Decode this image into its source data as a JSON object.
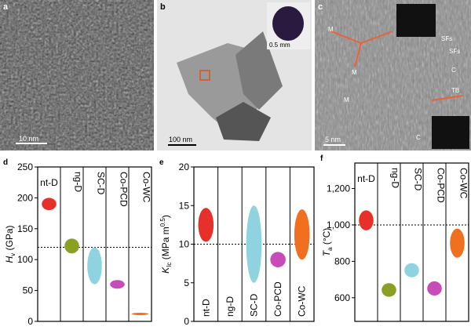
{
  "panels": {
    "a": {
      "label": "a",
      "scale": "10 nm"
    },
    "b": {
      "label": "b",
      "scale": "100 nm",
      "inset_scale": "0.5 mm"
    },
    "c": {
      "label": "c",
      "scale": "5 nm",
      "annotations": [
        "M",
        "M",
        "M",
        "SFs",
        "SFs",
        "C",
        "C",
        "TB"
      ]
    }
  },
  "chart_data": [
    {
      "type": "range",
      "label": "d",
      "y_label": {
        "symbol": "H",
        "sub": "v",
        "unit": " (GPa)"
      },
      "categories": [
        "nt-D",
        "ng-D",
        "SC-D",
        "Co-PCD",
        "Co-WC"
      ],
      "colors": [
        "#e8302b",
        "#8aa025",
        "#8fd3e0",
        "#c74bb8",
        "#f07020"
      ],
      "ranges": [
        [
          180,
          200
        ],
        [
          110,
          134
        ],
        [
          60,
          120
        ],
        [
          53,
          67
        ],
        [
          10,
          14
        ]
      ],
      "reference": 120,
      "ylim": [
        0,
        250
      ],
      "yticks": [
        0,
        50,
        100,
        150,
        200,
        250
      ]
    },
    {
      "type": "range",
      "label": "e",
      "y_label": {
        "symbol": "K",
        "sub": "Ic",
        "unit": " (MPa m",
        "sup": "0.5",
        "close": ")"
      },
      "categories": [
        "nt-D",
        "ng-D",
        "SC-D",
        "Co-PCD",
        "Co-WC"
      ],
      "colors": [
        "#e8302b",
        "#8aa025",
        "#8fd3e0",
        "#c74bb8",
        "#f07020"
      ],
      "ranges": [
        [
          10.3,
          14.7
        ],
        null,
        [
          5,
          15
        ],
        [
          7,
          9
        ],
        [
          8,
          14.5
        ]
      ],
      "reference": 10,
      "ylim": [
        0,
        20
      ],
      "yticks": [
        0,
        5,
        10,
        15,
        20
      ]
    },
    {
      "type": "range",
      "label": "f",
      "y_label": {
        "symbol": "T",
        "sub": "a",
        "unit": " (°C)"
      },
      "categories": [
        "nt-D",
        "ng-D",
        "SC-D",
        "Co-PCD",
        "Co-WC"
      ],
      "colors": [
        "#e8302b",
        "#8aa025",
        "#8fd3e0",
        "#c74bb8",
        "#f07020"
      ],
      "ranges": [
        [
          970,
          1080
        ],
        [
          605,
          680
        ],
        [
          712,
          790
        ],
        [
          612,
          690
        ],
        [
          820,
          980
        ]
      ],
      "reference": 1000,
      "ylim": [
        470,
        1340
      ],
      "yticks": [
        600,
        800,
        {
          "value": 1000,
          "label": "1,000"
        },
        {
          "value": 1200,
          "label": "1,200"
        }
      ]
    }
  ]
}
